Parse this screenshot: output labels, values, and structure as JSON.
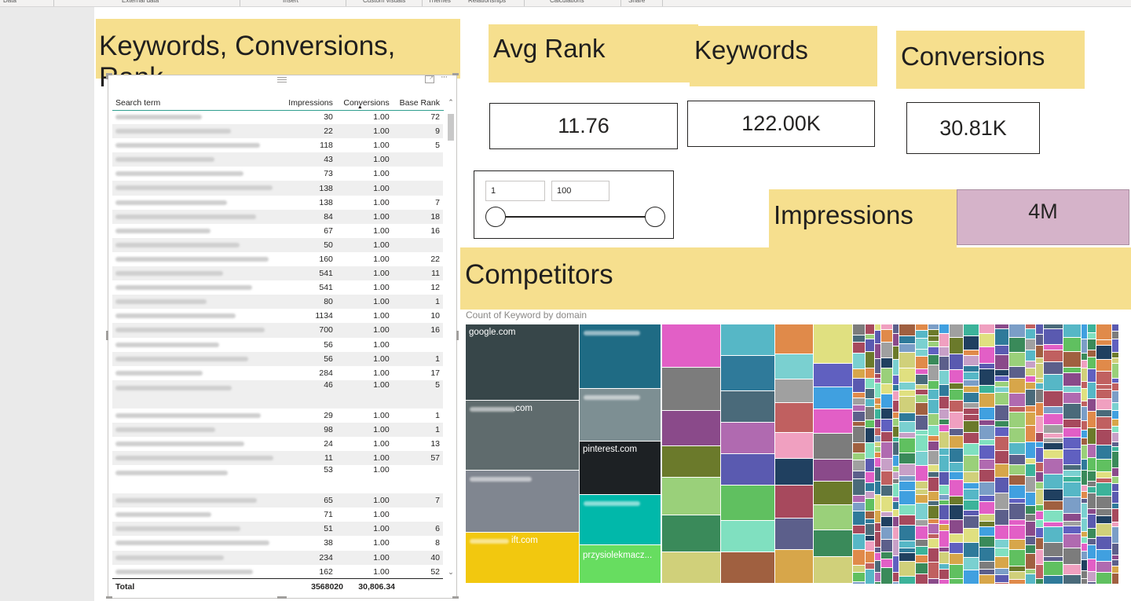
{
  "titles": {
    "table_title": "Keywords, Conversions, Rank",
    "avg_rank_title": "Avg Rank",
    "keywords_title": "Keywords",
    "conversions_title": "Conversions",
    "impressions_title": "Impressions",
    "competitors_title": "Competitors"
  },
  "cards": {
    "avg_rank": "11.76",
    "keywords": "122.00K",
    "conversions": "30.81K",
    "impressions": "4M"
  },
  "slider": {
    "min_value": "1",
    "max_value": "100"
  },
  "table": {
    "headers": [
      "Search term",
      "Impressions",
      "Conversions",
      "Base Rank"
    ],
    "sort_indicator": "▲",
    "rows": [
      {
        "impressions": "30",
        "conversions": "1.00",
        "rank": "72"
      },
      {
        "impressions": "22",
        "conversions": "1.00",
        "rank": "9"
      },
      {
        "impressions": "118",
        "conversions": "1.00",
        "rank": "5"
      },
      {
        "impressions": "43",
        "conversions": "1.00",
        "rank": ""
      },
      {
        "impressions": "73",
        "conversions": "1.00",
        "rank": ""
      },
      {
        "impressions": "138",
        "conversions": "1.00",
        "rank": ""
      },
      {
        "impressions": "138",
        "conversions": "1.00",
        "rank": "7"
      },
      {
        "impressions": "84",
        "conversions": "1.00",
        "rank": "18"
      },
      {
        "impressions": "67",
        "conversions": "1.00",
        "rank": "16"
      },
      {
        "impressions": "50",
        "conversions": "1.00",
        "rank": ""
      },
      {
        "impressions": "160",
        "conversions": "1.00",
        "rank": "22"
      },
      {
        "impressions": "541",
        "conversions": "1.00",
        "rank": "11"
      },
      {
        "impressions": "541",
        "conversions": "1.00",
        "rank": "12"
      },
      {
        "impressions": "80",
        "conversions": "1.00",
        "rank": "1"
      },
      {
        "impressions": "1134",
        "conversions": "1.00",
        "rank": "10"
      },
      {
        "impressions": "700",
        "conversions": "1.00",
        "rank": "16"
      },
      {
        "impressions": "56",
        "conversions": "1.00",
        "rank": ""
      },
      {
        "impressions": "56",
        "conversions": "1.00",
        "rank": "1"
      },
      {
        "impressions": "284",
        "conversions": "1.00",
        "rank": "17"
      },
      {
        "impressions": "46",
        "conversions": "1.00",
        "rank": "5",
        "tall": true
      },
      {
        "impressions": "29",
        "conversions": "1.00",
        "rank": "1"
      },
      {
        "impressions": "98",
        "conversions": "1.00",
        "rank": "1"
      },
      {
        "impressions": "24",
        "conversions": "1.00",
        "rank": "13"
      },
      {
        "impressions": "11",
        "conversions": "1.00",
        "rank": "57"
      },
      {
        "impressions": "53",
        "conversions": "1.00",
        "rank": "",
        "tall": true
      },
      {
        "impressions": "65",
        "conversions": "1.00",
        "rank": "7"
      },
      {
        "impressions": "71",
        "conversions": "1.00",
        "rank": ""
      },
      {
        "impressions": "51",
        "conversions": "1.00",
        "rank": "6"
      },
      {
        "impressions": "38",
        "conversions": "1.00",
        "rank": "8"
      },
      {
        "impressions": "234",
        "conversions": "1.00",
        "rank": "40"
      },
      {
        "impressions": "162",
        "conversions": "1.00",
        "rank": "52"
      }
    ],
    "total": {
      "label": "Total",
      "impressions": "3568020",
      "conversions": "30,806.34"
    }
  },
  "treemap": {
    "label": "Count of Keyword by domain",
    "tiles": [
      {
        "label": "google.com",
        "color": "#374649"
      },
      {
        "label": "",
        "color": "#1f6b84"
      },
      {
        "label": ".com",
        "color": "#5f6b6d"
      },
      {
        "label": "",
        "color": "#7d8f93"
      },
      {
        "label": "pinterest.com",
        "color": "#1d2124"
      },
      {
        "label": "",
        "color": "#808690"
      },
      {
        "label": "",
        "color": "#01b8aa"
      },
      {
        "label": "ift.com",
        "color": "#f2c80f"
      },
      {
        "label": "przysiolekmacz...",
        "color": "#67dd60"
      }
    ]
  }
}
